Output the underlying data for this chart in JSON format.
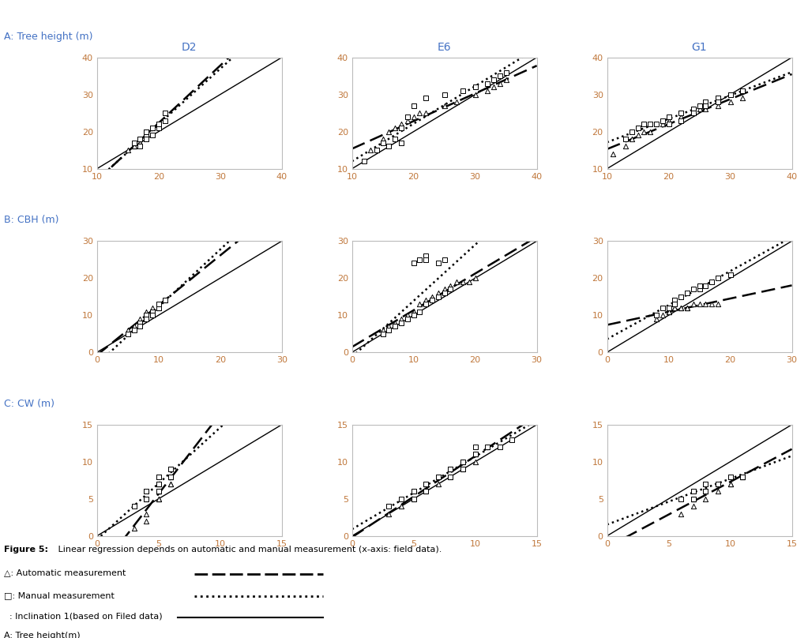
{
  "title_A": "A: Tree height (m)",
  "title_B": "B: CBH (m)",
  "title_C": "C: CW (m)",
  "col_labels": [
    "D2",
    "E6",
    "G1"
  ],
  "title_color": "#4472C4",
  "tick_color": "#C0783C",
  "row_A": {
    "xlim": [
      10,
      40
    ],
    "ylim": [
      10,
      40
    ],
    "xticks": [
      10,
      20,
      30,
      40
    ],
    "yticks": [
      10,
      20,
      30,
      40
    ],
    "D2": {
      "auto_x": [
        15,
        16,
        17,
        17,
        18,
        18,
        17,
        18,
        19,
        16,
        17,
        18
      ],
      "auto_y": [
        15,
        16,
        17,
        18,
        19,
        20,
        18,
        19,
        21,
        16,
        17,
        19
      ],
      "manual_x": [
        16,
        17,
        18,
        18,
        19,
        20,
        18,
        19,
        20,
        21,
        18,
        20,
        17,
        18,
        19,
        20,
        21
      ],
      "manual_y": [
        17,
        18,
        19,
        20,
        21,
        22,
        20,
        21,
        22,
        23,
        18,
        21,
        16,
        18,
        19,
        22,
        25
      ]
    },
    "E6": {
      "auto_x": [
        13,
        15,
        16,
        17,
        18,
        19,
        20,
        21,
        22,
        25,
        27,
        30,
        32,
        33,
        34,
        35
      ],
      "auto_y": [
        15,
        18,
        20,
        21,
        22,
        23,
        24,
        25,
        25,
        27,
        28,
        30,
        31,
        32,
        33,
        34
      ],
      "manual_x": [
        12,
        14,
        15,
        16,
        17,
        18,
        19,
        20,
        22,
        25,
        28,
        30,
        32,
        33,
        34,
        35,
        16,
        18
      ],
      "manual_y": [
        12,
        15,
        17,
        16,
        18,
        21,
        24,
        27,
        29,
        30,
        31,
        32,
        33,
        34,
        35,
        36,
        16,
        17
      ]
    },
    "G1": {
      "auto_x": [
        11,
        13,
        14,
        15,
        16,
        17,
        18,
        19,
        20,
        22,
        24,
        25,
        26,
        28,
        30,
        32
      ],
      "auto_y": [
        14,
        16,
        18,
        19,
        20,
        20,
        22,
        22,
        23,
        24,
        25,
        26,
        26,
        27,
        28,
        29
      ],
      "manual_x": [
        13,
        14,
        15,
        16,
        17,
        18,
        19,
        20,
        22,
        24,
        25,
        26,
        28,
        30,
        32,
        20,
        22,
        24,
        26,
        28,
        30
      ],
      "manual_y": [
        18,
        20,
        21,
        22,
        22,
        22,
        23,
        24,
        25,
        26,
        27,
        28,
        29,
        30,
        31,
        22,
        23,
        25,
        27,
        28,
        30
      ]
    }
  },
  "row_B": {
    "xlim": [
      0,
      30
    ],
    "ylim": [
      0,
      30
    ],
    "xticks": [
      0,
      10,
      20,
      30
    ],
    "yticks": [
      0,
      10,
      20,
      30
    ],
    "D2": {
      "auto_x": [
        5,
        6,
        7,
        7,
        8,
        8,
        9,
        9,
        10,
        10,
        11,
        8,
        9
      ],
      "auto_y": [
        6,
        7,
        8,
        9,
        10,
        11,
        11,
        12,
        12,
        13,
        14,
        10,
        11
      ],
      "manual_x": [
        5,
        6,
        7,
        7,
        8,
        8,
        9,
        9,
        10,
        10,
        11,
        8,
        9,
        7,
        8
      ],
      "manual_y": [
        5,
        6,
        7,
        8,
        9,
        10,
        10,
        11,
        12,
        13,
        14,
        9,
        10,
        7,
        9
      ]
    },
    "E6": {
      "auto_x": [
        5,
        6,
        7,
        8,
        9,
        10,
        11,
        12,
        13,
        14,
        15,
        16,
        17,
        18,
        19,
        20
      ],
      "auto_y": [
        6,
        7,
        8,
        9,
        10,
        11,
        13,
        14,
        15,
        16,
        17,
        18,
        19,
        19,
        19,
        20
      ],
      "manual_x": [
        5,
        6,
        7,
        8,
        9,
        10,
        11,
        12,
        13,
        14,
        15,
        16,
        10,
        11,
        12,
        12,
        14,
        15
      ],
      "manual_y": [
        5,
        6,
        7,
        8,
        9,
        10,
        11,
        13,
        14,
        15,
        16,
        17,
        24,
        25,
        26,
        25,
        24,
        25
      ]
    },
    "G1": {
      "auto_x": [
        8,
        9,
        10,
        11,
        12,
        13,
        14,
        15,
        16,
        17,
        18,
        10,
        11,
        12,
        13
      ],
      "auto_y": [
        9,
        10,
        11,
        12,
        12,
        12,
        13,
        13,
        13,
        13,
        13,
        11,
        12,
        12,
        12
      ],
      "manual_x": [
        8,
        9,
        10,
        11,
        12,
        13,
        14,
        15,
        16,
        17,
        18,
        10,
        11,
        12,
        13,
        11,
        13,
        15,
        17,
        20
      ],
      "manual_y": [
        10,
        12,
        12,
        14,
        15,
        16,
        17,
        17,
        18,
        19,
        20,
        12,
        14,
        15,
        16,
        13,
        16,
        18,
        19,
        21
      ]
    }
  },
  "row_C": {
    "xlim": [
      0,
      15
    ],
    "ylim": [
      0,
      15
    ],
    "xticks": [
      0,
      5,
      10,
      15
    ],
    "yticks": [
      0,
      5,
      10,
      15
    ],
    "D2": {
      "auto_x": [
        3,
        4,
        4,
        5,
        5,
        5,
        6,
        6,
        5,
        5,
        4,
        5,
        6,
        5,
        6
      ],
      "auto_y": [
        1,
        2,
        3,
        5,
        6,
        6,
        7,
        8,
        7,
        6,
        5,
        7,
        8,
        5,
        7
      ],
      "manual_x": [
        3,
        4,
        4,
        5,
        5,
        5,
        6,
        6,
        5,
        5,
        4,
        5,
        6,
        5,
        6,
        4,
        5
      ],
      "manual_y": [
        4,
        5,
        6,
        7,
        7,
        8,
        8,
        9,
        8,
        7,
        6,
        8,
        9,
        6,
        8,
        5,
        6
      ]
    },
    "E6": {
      "auto_x": [
        3,
        4,
        5,
        6,
        7,
        8,
        9,
        10,
        10,
        8,
        9,
        5,
        6,
        8,
        9,
        10,
        11
      ],
      "auto_y": [
        3,
        4,
        5,
        6,
        7,
        8,
        9,
        10,
        11,
        9,
        10,
        6,
        7,
        9,
        10,
        11,
        12
      ],
      "manual_x": [
        3,
        4,
        5,
        6,
        7,
        8,
        9,
        10,
        10,
        8,
        9,
        5,
        6,
        8,
        9,
        10,
        11,
        12,
        13
      ],
      "manual_y": [
        4,
        5,
        6,
        7,
        8,
        9,
        10,
        11,
        12,
        9,
        10,
        5,
        6,
        8,
        9,
        11,
        12,
        12,
        13
      ]
    },
    "G1": {
      "auto_x": [
        6,
        7,
        7,
        8,
        8,
        9,
        9,
        10,
        11,
        8,
        9,
        7,
        8,
        10,
        11
      ],
      "auto_y": [
        3,
        4,
        5,
        5,
        6,
        6,
        7,
        7,
        8,
        6,
        7,
        5,
        6,
        7,
        8
      ],
      "manual_x": [
        6,
        7,
        7,
        8,
        8,
        9,
        9,
        10,
        11,
        8,
        9,
        7,
        8,
        10,
        11
      ],
      "manual_y": [
        5,
        5,
        6,
        6,
        7,
        7,
        7,
        8,
        8,
        7,
        7,
        6,
        7,
        8,
        8
      ]
    }
  },
  "fig_caption_bold": "Figure 5:",
  "fig_caption_rest": " Linear regression depends on automatic and manual measurement (x-axis: field data).",
  "legend_auto_text": "△: Automatic measurement",
  "legend_manual_text": "□: Manual measurement",
  "legend_inclination_text": "  : Inclination 1(based on Filed data)",
  "legend_last_text": "A: Tree height(m)"
}
